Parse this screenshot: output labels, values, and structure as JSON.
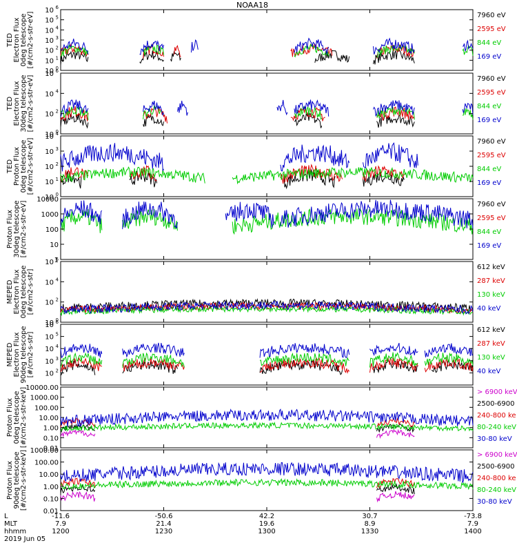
{
  "chart_data": {
    "type": "line",
    "title": "NOAA18",
    "x_axis": {
      "tick_positions_minutes": [
        0,
        30,
        60,
        90,
        120
      ],
      "rows": [
        {
          "label": "L",
          "values": [
            "-11.6",
            "-50.6",
            "42.2",
            "30.7",
            "-73.8"
          ]
        },
        {
          "label": "MLT",
          "values": [
            "7.9",
            "21.4",
            "19.6",
            "8.9",
            "7.9"
          ]
        },
        {
          "label": "hhmm",
          "values": [
            "1200",
            "1230",
            "1300",
            "1330",
            "1400"
          ]
        }
      ],
      "date": "2019 Jun 05"
    },
    "panels": [
      {
        "ylabel": [
          "TED",
          "Electron Flux",
          "0deg telescope",
          "[#/cm2-s-str-eV]"
        ],
        "log": true,
        "ylim_exp": [
          0,
          6
        ],
        "tick_exps": [
          0,
          1,
          2,
          3,
          4,
          5,
          6
        ],
        "tick_style": "pow",
        "legend": [
          {
            "text": "7960 eV",
            "color": "#000000"
          },
          {
            "text": "2595 eV",
            "color": "#dd0000"
          },
          {
            "text": "844 eV",
            "color": "#00cc00"
          },
          {
            "text": "169 eV",
            "color": "#0000cc"
          }
        ],
        "series": [
          {
            "color": "#000000",
            "level": 1.0,
            "amp": 0.7,
            "segs": [
              [
                0,
                8
              ],
              [
                23,
                30
              ],
              [
                32,
                35
              ],
              [
                74,
                84
              ],
              [
                91,
                103
              ]
            ]
          },
          {
            "color": "#dd0000",
            "level": 1.6,
            "amp": 0.7,
            "segs": [
              [
                0,
                8
              ],
              [
                24,
                30
              ],
              [
                33,
                35
              ],
              [
                67,
                79
              ],
              [
                92,
                103
              ]
            ]
          },
          {
            "color": "#00cc00",
            "level": 1.7,
            "amp": 0.6,
            "segs": [
              [
                0,
                8
              ],
              [
                24,
                30
              ],
              [
                68,
                78
              ],
              [
                92,
                103
              ],
              [
                117,
                120
              ]
            ]
          },
          {
            "color": "#0000cc",
            "level": 2.0,
            "amp": 0.8,
            "segs": [
              [
                0,
                8
              ],
              [
                23,
                30
              ],
              [
                38,
                40
              ],
              [
                68,
                78
              ],
              [
                91,
                103
              ],
              [
                117,
                120
              ]
            ]
          }
        ]
      },
      {
        "ylabel": [
          "TED",
          "Electron Flux",
          "30deg telescope",
          "[#/cm2-s-str-eV]"
        ],
        "log": true,
        "ylim_exp": [
          0,
          6
        ],
        "tick_exps": [
          0,
          2,
          4,
          6
        ],
        "tick_style": "pow",
        "legend": [
          {
            "text": "7960 eV",
            "color": "#000000"
          },
          {
            "text": "2595 eV",
            "color": "#dd0000"
          },
          {
            "text": "844 eV",
            "color": "#00cc00"
          },
          {
            "text": "169 eV",
            "color": "#0000cc"
          }
        ],
        "series": [
          {
            "color": "#000000",
            "level": 1.0,
            "amp": 0.7,
            "segs": [
              [
                0,
                8
              ],
              [
                24,
                30
              ],
              [
                68,
                76
              ],
              [
                92,
                103
              ]
            ]
          },
          {
            "color": "#dd0000",
            "level": 1.6,
            "amp": 0.8,
            "segs": [
              [
                0,
                8
              ],
              [
                24,
                31
              ],
              [
                67,
                77
              ],
              [
                92,
                103
              ]
            ]
          },
          {
            "color": "#00cc00",
            "level": 1.8,
            "amp": 0.7,
            "segs": [
              [
                0,
                8
              ],
              [
                24,
                30
              ],
              [
                68,
                76
              ],
              [
                92,
                103
              ],
              [
                117,
                120
              ]
            ]
          },
          {
            "color": "#0000cc",
            "level": 2.2,
            "amp": 0.8,
            "segs": [
              [
                0,
                8
              ],
              [
                24,
                30
              ],
              [
                34,
                37
              ],
              [
                63,
                66
              ],
              [
                68,
                78
              ],
              [
                91,
                103
              ],
              [
                117,
                120
              ]
            ]
          }
        ]
      },
      {
        "ylabel": [
          "TED",
          "Proton Flux",
          "0deg telescope",
          "[#/cm2-s-str-eV]"
        ],
        "log": true,
        "ylim_exp": [
          0,
          4
        ],
        "tick_exps": [
          0,
          1,
          2,
          3,
          4
        ],
        "tick_style": "pow",
        "legend": [
          {
            "text": "7960 eV",
            "color": "#000000"
          },
          {
            "text": "2595 eV",
            "color": "#dd0000"
          },
          {
            "text": "844 eV",
            "color": "#00cc00"
          },
          {
            "text": "169 eV",
            "color": "#0000cc"
          }
        ],
        "series": [
          {
            "color": "#000000",
            "level": 0.9,
            "amp": 0.6,
            "segs": [
              [
                0,
                6
              ],
              [
                20,
                28
              ],
              [
                65,
                80
              ],
              [
                88,
                100
              ]
            ]
          },
          {
            "color": "#dd0000",
            "level": 1.2,
            "amp": 0.6,
            "segs": [
              [
                0,
                8
              ],
              [
                20,
                28
              ],
              [
                64,
                82
              ],
              [
                88,
                100
              ]
            ]
          },
          {
            "color": "#00cc00",
            "level": 1.2,
            "amp": 0.5,
            "segs": [
              [
                0,
                42
              ],
              [
                50,
                120
              ]
            ]
          },
          {
            "color": "#0000cc",
            "level": 2.2,
            "amp": 0.9,
            "segs": [
              [
                0,
                30
              ],
              [
                64,
                84
              ],
              [
                88,
                104
              ]
            ]
          }
        ]
      },
      {
        "ylabel": [
          "Proton Flux",
          "30deg telescope",
          "[#/cm2-s-str-eV]"
        ],
        "log": true,
        "ylim_exp": [
          0,
          4
        ],
        "tick_exps": [
          0,
          1,
          2,
          3,
          4
        ],
        "tick_style": "num",
        "tick_labels": [
          "1",
          "10",
          "100",
          "1000",
          "10000"
        ],
        "legend": [
          {
            "text": "7960 eV",
            "color": "#000000"
          },
          {
            "text": "2595 eV",
            "color": "#dd0000"
          },
          {
            "text": "844 eV",
            "color": "#00cc00"
          },
          {
            "text": "169 eV",
            "color": "#0000cc"
          }
        ],
        "series": [
          {
            "color": "#00cc00",
            "level": 2.2,
            "amp": 0.8,
            "segs": [
              [
                0,
                12
              ],
              [
                18,
                34
              ],
              [
                50,
                120
              ]
            ]
          },
          {
            "color": "#0000cc",
            "level": 2.6,
            "amp": 0.9,
            "segs": [
              [
                0,
                12
              ],
              [
                18,
                34
              ],
              [
                48,
                62
              ],
              [
                64,
                120
              ]
            ]
          }
        ]
      },
      {
        "ylabel": [
          "MEPED",
          "Electron Flux",
          "0deg telescope",
          "[#/cm2-s-str]"
        ],
        "log": true,
        "ylim_exp": [
          0,
          6
        ],
        "tick_exps": [
          0,
          2,
          4,
          6
        ],
        "tick_style": "pow",
        "legend": [
          {
            "text": "612 keV",
            "color": "#000000"
          },
          {
            "text": "287 keV",
            "color": "#dd0000"
          },
          {
            "text": "130 keV",
            "color": "#00cc00"
          },
          {
            "text": "40 keV",
            "color": "#0000cc"
          }
        ],
        "series": [
          {
            "color": "#000000",
            "level": 1.4,
            "amp": 0.6,
            "segs": [
              [
                0,
                120
              ]
            ]
          },
          {
            "color": "#dd0000",
            "level": 1.2,
            "amp": 0.5,
            "segs": [
              [
                0,
                120
              ]
            ]
          },
          {
            "color": "#00cc00",
            "level": 1.0,
            "amp": 0.4,
            "segs": [
              [
                0,
                120
              ]
            ]
          },
          {
            "color": "#0000cc",
            "level": 1.2,
            "amp": 0.6,
            "segs": [
              [
                0,
                120
              ]
            ]
          }
        ]
      },
      {
        "ylabel": [
          "MEPED",
          "Electron Flux",
          "90deg telescope",
          "[#/cm2-s-str]"
        ],
        "log": true,
        "ylim_exp": [
          1,
          6
        ],
        "tick_exps": [
          2,
          3,
          4,
          5,
          6
        ],
        "tick_style": "pow",
        "legend": [
          {
            "text": "612 keV",
            "color": "#000000"
          },
          {
            "text": "287 keV",
            "color": "#dd0000"
          },
          {
            "text": "130 keV",
            "color": "#00cc00"
          },
          {
            "text": "40 keV",
            "color": "#0000cc"
          }
        ],
        "series": [
          {
            "color": "#000000",
            "level": 2.2,
            "amp": 0.6,
            "segs": [
              [
                0,
                10
              ],
              [
                18,
                34
              ],
              [
                58,
                82
              ],
              [
                91,
                104
              ],
              [
                108,
                120
              ]
            ]
          },
          {
            "color": "#dd0000",
            "level": 2.4,
            "amp": 0.6,
            "segs": [
              [
                0,
                12
              ],
              [
                18,
                36
              ],
              [
                58,
                84
              ],
              [
                90,
                104
              ],
              [
                106,
                120
              ]
            ]
          },
          {
            "color": "#00cc00",
            "level": 2.8,
            "amp": 0.6,
            "segs": [
              [
                0,
                12
              ],
              [
                18,
                36
              ],
              [
                58,
                84
              ],
              [
                90,
                104
              ],
              [
                106,
                120
              ]
            ]
          },
          {
            "color": "#0000cc",
            "level": 3.6,
            "amp": 0.6,
            "segs": [
              [
                0,
                12
              ],
              [
                18,
                36
              ],
              [
                58,
                84
              ],
              [
                90,
                104
              ],
              [
                106,
                120
              ]
            ]
          }
        ]
      },
      {
        "ylabel": [
          "Proton Flux",
          "0deg telescope",
          "[#/cm2-s-str-keV]"
        ],
        "log": true,
        "ylim_exp": [
          -2,
          4
        ],
        "tick_exps": [
          -2,
          -1,
          0,
          1,
          2,
          3,
          4
        ],
        "tick_style": "num",
        "tick_labels": [
          "0.01",
          "0.10",
          "1.00",
          "10.00",
          "100.00",
          "1000.00",
          "10000.00"
        ],
        "legend": [
          {
            "text": "> 6900 keV",
            "color": "#cc00cc"
          },
          {
            "text": "2500-6900",
            "color": "#000000"
          },
          {
            "text": "240-800 ke",
            "color": "#dd0000"
          },
          {
            "text": "80-240 keV",
            "color": "#00cc00"
          },
          {
            "text": "30-80 keV",
            "color": "#0000cc"
          }
        ],
        "series": [
          {
            "color": "#cc00cc",
            "level": -0.8,
            "amp": 0.4,
            "segs": [
              [
                0,
                10
              ],
              [
                92,
                103
              ]
            ]
          },
          {
            "color": "#000000",
            "level": -0.2,
            "amp": 0.4,
            "segs": [
              [
                0,
                10
              ],
              [
                92,
                103
              ]
            ]
          },
          {
            "color": "#dd0000",
            "level": 0.3,
            "amp": 0.4,
            "segs": [
              [
                0,
                10
              ],
              [
                92,
                103
              ]
            ]
          },
          {
            "color": "#00cc00",
            "level": -0.1,
            "amp": 0.4,
            "segs": [
              [
                0,
                120
              ]
            ]
          },
          {
            "color": "#0000cc",
            "level": 0.6,
            "amp": 0.8,
            "segs": [
              [
                0,
                120
              ]
            ]
          }
        ]
      },
      {
        "ylabel": [
          "Proton Flux",
          "90deg telescope",
          "[#/cm2-s-str-keV]"
        ],
        "log": true,
        "ylim_exp": [
          -2,
          3
        ],
        "tick_exps": [
          -2,
          -1,
          0,
          1,
          2,
          3
        ],
        "tick_style": "num",
        "tick_labels": [
          "0.01",
          "0.10",
          "1.00",
          "10.00",
          "100.00",
          "1000.00"
        ],
        "legend": [
          {
            "text": "> 6900 keV",
            "color": "#cc00cc"
          },
          {
            "text": "2500-6900",
            "color": "#000000"
          },
          {
            "text": "240-800 ke",
            "color": "#dd0000"
          },
          {
            "text": "80-240 keV",
            "color": "#00cc00"
          },
          {
            "text": "30-80 keV",
            "color": "#0000cc"
          }
        ],
        "series": [
          {
            "color": "#cc00cc",
            "level": -1.0,
            "amp": 0.4,
            "segs": [
              [
                0,
                10
              ],
              [
                92,
                103
              ]
            ]
          },
          {
            "color": "#000000",
            "level": -0.4,
            "amp": 0.4,
            "segs": [
              [
                0,
                10
              ],
              [
                92,
                103
              ]
            ]
          },
          {
            "color": "#dd0000",
            "level": 0.1,
            "amp": 0.4,
            "segs": [
              [
                0,
                10
              ],
              [
                92,
                103
              ]
            ]
          },
          {
            "color": "#00cc00",
            "level": 0.0,
            "amp": 0.4,
            "segs": [
              [
                0,
                120
              ]
            ]
          },
          {
            "color": "#0000cc",
            "level": 0.8,
            "amp": 0.8,
            "segs": [
              [
                0,
                120
              ]
            ]
          }
        ]
      }
    ]
  }
}
